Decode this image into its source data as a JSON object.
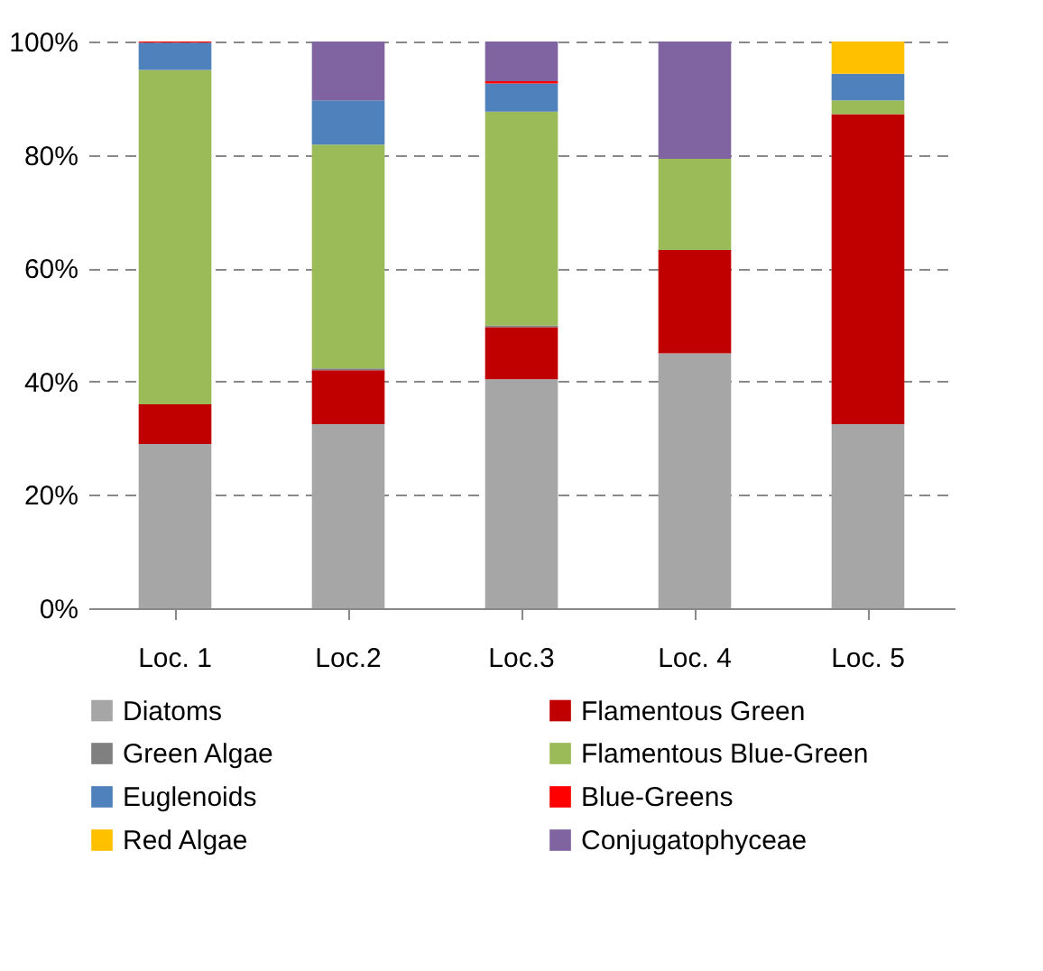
{
  "chart_data": {
    "type": "bar",
    "stacked": true,
    "categories": [
      "Loc. 1",
      "Loc.2",
      "Loc.3",
      "Loc. 4",
      "Loc. 5"
    ],
    "series": [
      {
        "name": "Diatoms",
        "color": "#a6a6a6",
        "values": [
          29,
          32.5,
          40.4,
          45,
          32.5
        ]
      },
      {
        "name": "Flamentous Green",
        "color": "#c00000",
        "values": [
          7,
          9.5,
          9.2,
          18.2,
          54.7
        ]
      },
      {
        "name": "Green Algae",
        "color": "#808080",
        "values": [
          null,
          0.3,
          0.3,
          null,
          null
        ]
      },
      {
        "name": "Flamentous Blue-Green",
        "color": "#9bbb59",
        "values": [
          59,
          39.5,
          37.7,
          16.1,
          2.4
        ]
      },
      {
        "name": "Euglenoids",
        "color": "#4f81bd",
        "values": [
          4.8,
          7.8,
          5,
          null,
          4.7
        ]
      },
      {
        "name": "Blue-Greens",
        "color": "#ff0000",
        "values": [
          0.2,
          null,
          0.4,
          null,
          null
        ]
      },
      {
        "name": "Red Algae",
        "color": "#ffc000",
        "values": [
          null,
          null,
          null,
          null,
          5.7
        ]
      },
      {
        "name": "Conjugatophyceae",
        "color": "#8064a2",
        "values": [
          null,
          10.4,
          7,
          20.7,
          null
        ]
      }
    ],
    "ylim": [
      0,
      100
    ],
    "yticks": [
      {
        "value": 0,
        "label": "0%"
      },
      {
        "value": 20,
        "label": "20%"
      },
      {
        "value": 40,
        "label": "40%"
      },
      {
        "value": 60,
        "label": "60%"
      },
      {
        "value": 80,
        "label": "80%"
      },
      {
        "value": 100,
        "label": "100%"
      }
    ],
    "grid": "y",
    "legend": "bottom"
  }
}
